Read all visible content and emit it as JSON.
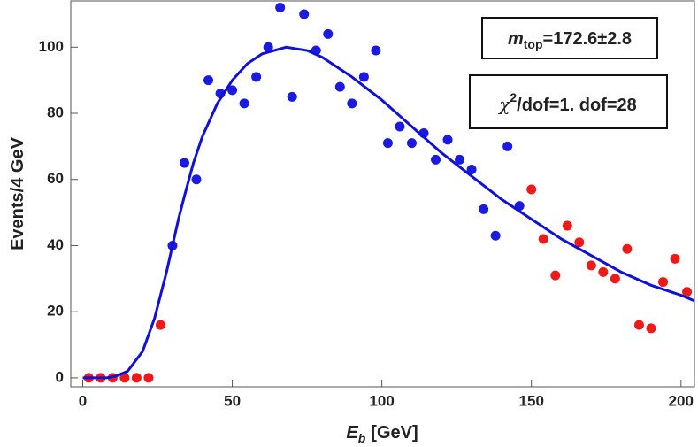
{
  "chart_data": {
    "type": "scatter",
    "xlabel": {
      "symbol": "E",
      "subscript": "b",
      "unit": "[GeV]"
    },
    "ylabel": "Events/4 GeV",
    "xlim": [
      -4,
      204.5
    ],
    "ylim": [
      -2.7,
      114
    ],
    "xticks": [
      0,
      50,
      100,
      150,
      200
    ],
    "yticks": [
      0,
      20,
      40,
      60,
      80,
      100
    ],
    "series": [
      {
        "color": "#1a1ae0",
        "x": [
          30,
          34,
          38,
          42,
          46,
          50,
          54,
          58,
          62,
          66,
          70,
          74,
          78,
          82,
          86,
          90,
          94,
          98,
          102,
          106,
          110,
          114,
          118,
          122,
          126,
          130,
          134,
          138,
          142,
          146
        ],
        "values": [
          40,
          65,
          60,
          90,
          86,
          87,
          83,
          91,
          100,
          112,
          85,
          110,
          99,
          104,
          88,
          83,
          91,
          99,
          71,
          76,
          71,
          74,
          66,
          72,
          66,
          63,
          51,
          43,
          70,
          52
        ]
      },
      {
        "color": "#ee1a1a",
        "x": [
          2,
          6,
          10,
          14,
          18,
          22,
          26,
          150,
          154,
          158,
          162,
          166,
          170,
          174,
          178,
          182,
          186,
          190,
          194,
          198,
          202
        ],
        "values": [
          0,
          0,
          0,
          0,
          0,
          0,
          16,
          57,
          42,
          31,
          46,
          41,
          34,
          32,
          30,
          39,
          16,
          15,
          29,
          36,
          26
        ]
      }
    ],
    "fit": {
      "color": "#1010d8",
      "x": [
        0,
        5,
        8,
        11,
        15,
        20,
        24,
        26,
        28,
        30,
        32,
        34,
        37,
        40,
        45,
        50,
        55,
        60,
        68,
        75,
        80,
        90,
        100,
        110,
        120,
        130,
        140,
        150,
        160,
        170,
        180,
        190,
        200,
        204.5
      ],
      "values": [
        0,
        0,
        0,
        0.5,
        2,
        8,
        18,
        25,
        32,
        40,
        48,
        55,
        65,
        73,
        83,
        90,
        95,
        98,
        100,
        99,
        97,
        91,
        84,
        76,
        68,
        61,
        54,
        48,
        42,
        37,
        32,
        28,
        25,
        23.3
      ]
    },
    "annotations": [
      {
        "symbol": "m",
        "subscript": "top",
        "text": "=172.6±2.8"
      },
      {
        "symbol": "χ",
        "superscript": "2",
        "text": "/dof=1. dof=28"
      }
    ]
  }
}
